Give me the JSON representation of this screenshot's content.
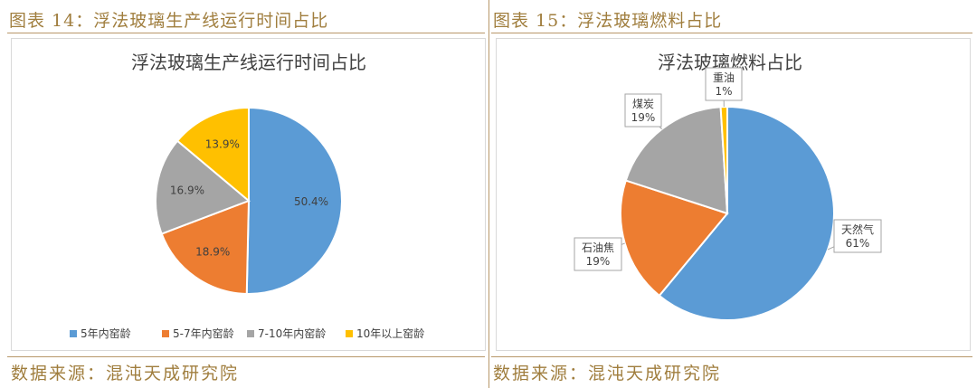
{
  "left_panel": {
    "figure_title": "图表 14：浮法玻璃生产线运行时间占比",
    "source": "数据来源：混沌天成研究院"
  },
  "right_panel": {
    "figure_title": "图表 15：浮法玻璃燃料占比",
    "source": "数据来源：混沌天成研究院"
  },
  "colors": {
    "blue": "#5b9bd5",
    "orange": "#ed7d31",
    "gray": "#a5a5a5",
    "yellow": "#ffc000",
    "accent": "#a07e3e"
  },
  "chart_data": [
    {
      "type": "pie",
      "title": "浮法玻璃生产线运行时间占比",
      "categories": [
        "5年内窑龄",
        "5-7年内窑龄",
        "7-10年内窑龄",
        "10年以上窑龄"
      ],
      "values": [
        50.4,
        18.9,
        16.9,
        13.9
      ],
      "labels": [
        "50.4%",
        "18.9%",
        "16.9%",
        "13.9%"
      ],
      "colors": [
        "#5b9bd5",
        "#ed7d31",
        "#a5a5a5",
        "#ffc000"
      ],
      "legend": "bottom"
    },
    {
      "type": "pie",
      "title": "浮法玻璃燃料占比",
      "categories": [
        "天然气",
        "石油焦",
        "煤炭",
        "重油"
      ],
      "values": [
        61,
        19,
        19,
        1
      ],
      "labels": [
        "61%",
        "19%",
        "19%",
        "1%"
      ],
      "colors": [
        "#5b9bd5",
        "#ed7d31",
        "#a5a5a5",
        "#ffc000"
      ],
      "legend": "none"
    }
  ]
}
